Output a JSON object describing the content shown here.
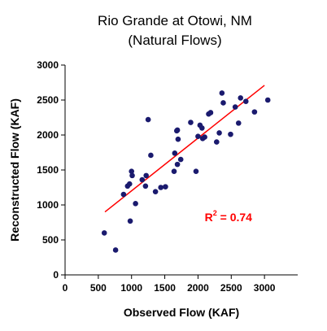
{
  "chart_data": {
    "type": "scatter",
    "title": "Rio Grande at Otowi, NM",
    "subtitle": "(Natural Flows)",
    "xlabel": "Observed Flow (KAF)",
    "ylabel": "Reconstructed Flow (KAF)",
    "xlim": [
      0,
      3500
    ],
    "ylim": [
      0,
      3000
    ],
    "xticks": [
      "0",
      "500",
      "1000",
      "1500",
      "2000",
      "2500",
      "3000"
    ],
    "yticks": [
      "0",
      "500",
      "1000",
      "1500",
      "2000",
      "2500",
      "3000"
    ],
    "grid": false,
    "point_color": "#1a1a6e",
    "trendline_color": "#ff0000",
    "trendline": {
      "x": [
        600,
        3000
      ],
      "y": [
        900,
        2710
      ]
    },
    "annotation": {
      "prefix": "R",
      "sup": "2",
      "text": " = 0.74",
      "x": 2100,
      "y": 770
    },
    "points": [
      {
        "x": 590,
        "y": 600
      },
      {
        "x": 760,
        "y": 355
      },
      {
        "x": 880,
        "y": 1150
      },
      {
        "x": 940,
        "y": 1270
      },
      {
        "x": 970,
        "y": 1300
      },
      {
        "x": 980,
        "y": 770
      },
      {
        "x": 1000,
        "y": 1480
      },
      {
        "x": 1010,
        "y": 1420
      },
      {
        "x": 1060,
        "y": 1020
      },
      {
        "x": 1160,
        "y": 1360
      },
      {
        "x": 1210,
        "y": 1270
      },
      {
        "x": 1220,
        "y": 1420
      },
      {
        "x": 1250,
        "y": 2220
      },
      {
        "x": 1290,
        "y": 1710
      },
      {
        "x": 1360,
        "y": 1190
      },
      {
        "x": 1440,
        "y": 1250
      },
      {
        "x": 1510,
        "y": 1260
      },
      {
        "x": 1640,
        "y": 1480
      },
      {
        "x": 1650,
        "y": 1740
      },
      {
        "x": 1680,
        "y": 2060
      },
      {
        "x": 1690,
        "y": 2070
      },
      {
        "x": 1690,
        "y": 1580
      },
      {
        "x": 1700,
        "y": 1940
      },
      {
        "x": 1740,
        "y": 1650
      },
      {
        "x": 1890,
        "y": 2180
      },
      {
        "x": 1970,
        "y": 1480
      },
      {
        "x": 2000,
        "y": 1980
      },
      {
        "x": 2030,
        "y": 2140
      },
      {
        "x": 2060,
        "y": 2100
      },
      {
        "x": 2070,
        "y": 1950
      },
      {
        "x": 2100,
        "y": 1970
      },
      {
        "x": 2160,
        "y": 2300
      },
      {
        "x": 2190,
        "y": 2320
      },
      {
        "x": 2280,
        "y": 1900
      },
      {
        "x": 2320,
        "y": 2030
      },
      {
        "x": 2360,
        "y": 2600
      },
      {
        "x": 2380,
        "y": 2460
      },
      {
        "x": 2490,
        "y": 2010
      },
      {
        "x": 2560,
        "y": 2400
      },
      {
        "x": 2610,
        "y": 2170
      },
      {
        "x": 2640,
        "y": 2530
      },
      {
        "x": 2720,
        "y": 2480
      },
      {
        "x": 2850,
        "y": 2330
      },
      {
        "x": 3050,
        "y": 2500
      }
    ]
  }
}
